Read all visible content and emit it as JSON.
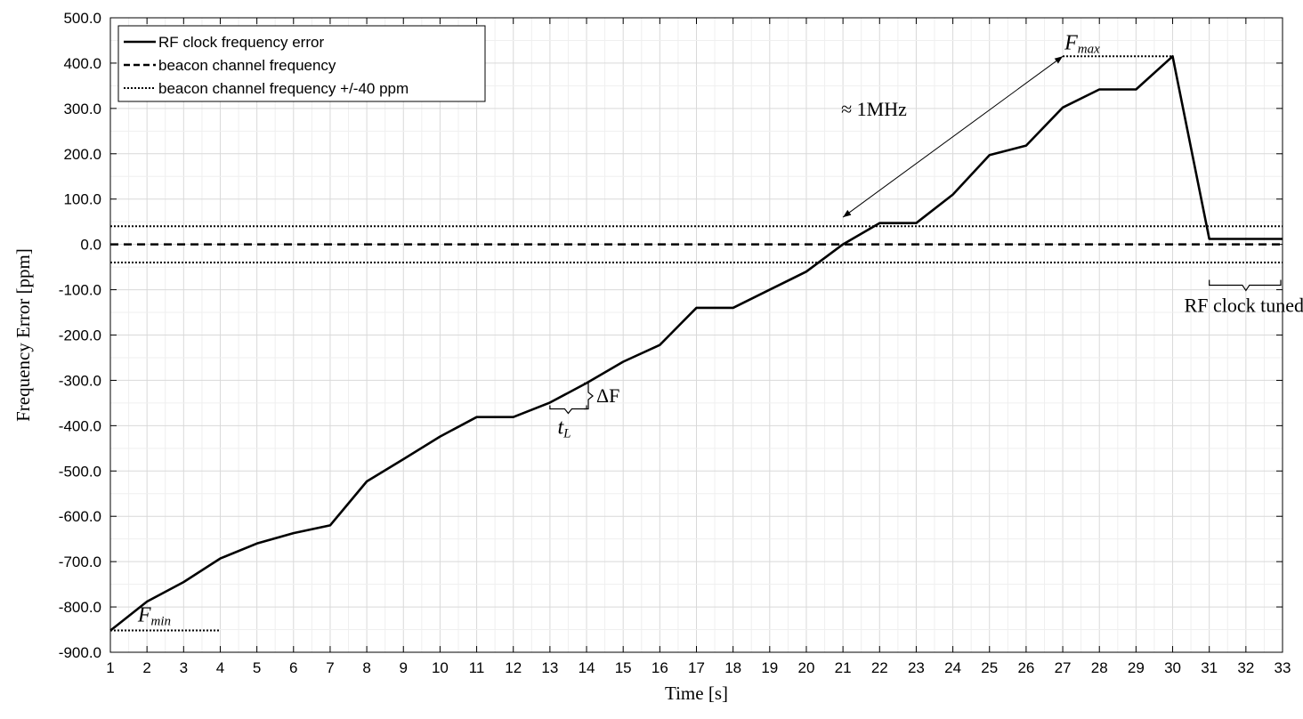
{
  "chart_data": {
    "type": "line",
    "title": "",
    "xlabel": "Time [s]",
    "ylabel": "Frequency Error [ppm]",
    "xlim": [
      1,
      33
    ],
    "ylim": [
      -900,
      500
    ],
    "grid": true,
    "legend_position": "top-left",
    "x_ticks": [
      "1",
      "2",
      "3",
      "4",
      "5",
      "6",
      "7",
      "8",
      "9",
      "10",
      "11",
      "12",
      "13",
      "14",
      "15",
      "16",
      "17",
      "18",
      "19",
      "20",
      "21",
      "22",
      "23",
      "24",
      "25",
      "26",
      "27",
      "28",
      "29",
      "30",
      "31",
      "32",
      "33"
    ],
    "y_ticks": [
      "500.0",
      "400.0",
      "300.0",
      "200.0",
      "100.0",
      "0.0",
      "-100.0",
      "-200.0",
      "-300.0",
      "-400.0",
      "-500.0",
      "-600.0",
      "-700.0",
      "-800.0",
      "-900.0"
    ],
    "series": [
      {
        "name": "RF clock frequency error",
        "style": "solid",
        "x": [
          1,
          2,
          3,
          4,
          5,
          6,
          7,
          8,
          9,
          10,
          11,
          12,
          13,
          14,
          15,
          16,
          17,
          18,
          19,
          20,
          21,
          22,
          23,
          24,
          25,
          26,
          27,
          28,
          29,
          30,
          31,
          33
        ],
        "y": [
          -852,
          -788,
          -745,
          -693,
          -660,
          -637,
          -620,
          -523,
          -474,
          -424,
          -381,
          -381,
          -349,
          -306,
          -259,
          -222,
          -140,
          -140,
          -100,
          -60,
          0,
          47,
          47,
          110,
          197,
          218,
          302,
          342,
          342,
          415,
          12,
          12
        ]
      },
      {
        "name": "beacon channel frequency",
        "style": "dashed",
        "x": [
          1,
          33
        ],
        "y": [
          0,
          0
        ]
      },
      {
        "name": "beacon channel frequency +/-40 ppm",
        "style": "dotted",
        "x": [
          1,
          33
        ],
        "y": [
          40,
          40
        ],
        "y_lower": [
          -40,
          -40
        ]
      }
    ],
    "annotations": {
      "fmax": {
        "main": "F",
        "sub": "max",
        "x_range": [
          27,
          30
        ],
        "y": 415
      },
      "fmin": {
        "main": "F",
        "sub": "min",
        "x_range": [
          1,
          4
        ],
        "y": -852
      },
      "span": {
        "text": "≈ 1MHz",
        "from": [
          21,
          60
        ],
        "to": [
          27,
          415
        ]
      },
      "delta_f": {
        "text": "ΔF",
        "x": 14,
        "y_range": [
          -363,
          -306
        ]
      },
      "t_l": {
        "main": "t",
        "sub": "L",
        "x_range": [
          13,
          14
        ],
        "y": -363
      },
      "tuned": {
        "text": "RF clock tuned",
        "x_range": [
          31,
          33
        ],
        "y": -90
      }
    }
  }
}
